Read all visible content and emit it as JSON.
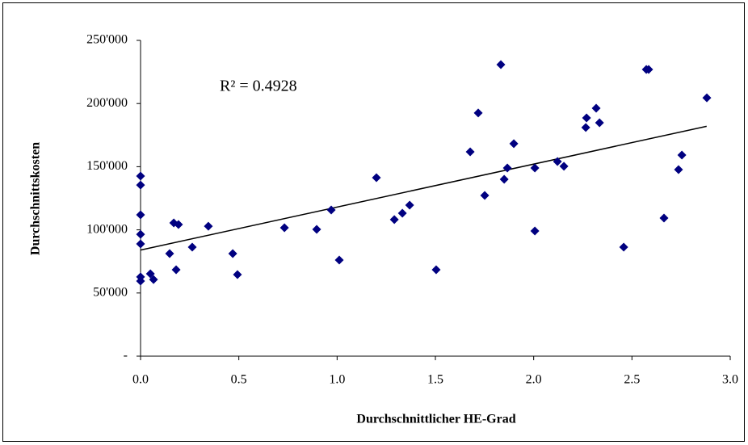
{
  "chart_data": {
    "type": "scatter",
    "xlabel": "Durchschnittlicher HE-Grad",
    "ylabel": "Durchschnittskosten",
    "annotation": "R² = 0.4928",
    "color": "#000080",
    "x": [
      0,
      0,
      0,
      0,
      0,
      0,
      0,
      0.05,
      0.066,
      0.148,
      0.169,
      0.193,
      0.181,
      0.263,
      0.345,
      0.469,
      0.493,
      0.732,
      0.896,
      0.97,
      1.011,
      1.2,
      1.291,
      1.332,
      1.369,
      1.504,
      1.718,
      1.677,
      1.751,
      1.833,
      1.85,
      1.866,
      1.899,
      2.006,
      2.006,
      2.121,
      2.154,
      2.265,
      2.269,
      2.318,
      2.335,
      2.458,
      2.573,
      2.585,
      2.663,
      2.737,
      2.754,
      2.881
    ],
    "values": [
      142600,
      135500,
      111900,
      96500,
      88900,
      62700,
      59500,
      65200,
      60700,
      81200,
      105500,
      104200,
      68400,
      86300,
      102900,
      81200,
      64600,
      101700,
      100400,
      115700,
      76100,
      141300,
      108100,
      113200,
      119600,
      68400,
      192500,
      161800,
      127200,
      230800,
      140000,
      149000,
      168200,
      149000,
      99100,
      154100,
      150300,
      181000,
      188600,
      196300,
      184800,
      86300,
      227000,
      227000,
      109300,
      147700,
      159200,
      204500
    ],
    "trendline": {
      "x": [
        0,
        2.88
      ],
      "values": [
        84000,
        182000
      ]
    },
    "xlim": [
      0,
      3
    ],
    "xticks": [
      {
        "value": 0,
        "label": "0.0"
      },
      0.5,
      {
        "value": 1,
        "label": "1.0"
      },
      1.5,
      {
        "value": 2,
        "label": "2.0"
      },
      2.5,
      {
        "value": 3,
        "label": "3.0"
      }
    ],
    "ylim": [
      0,
      250000
    ],
    "yticks": [
      {
        "value": 0,
        "label": "-"
      },
      {
        "value": 50000,
        "label": "50'000"
      },
      {
        "value": 100000,
        "label": "100'000"
      },
      {
        "value": 150000,
        "label": "150'000"
      },
      {
        "value": 200000,
        "label": "200'000"
      },
      {
        "value": 250000,
        "label": "250'000"
      }
    ]
  }
}
